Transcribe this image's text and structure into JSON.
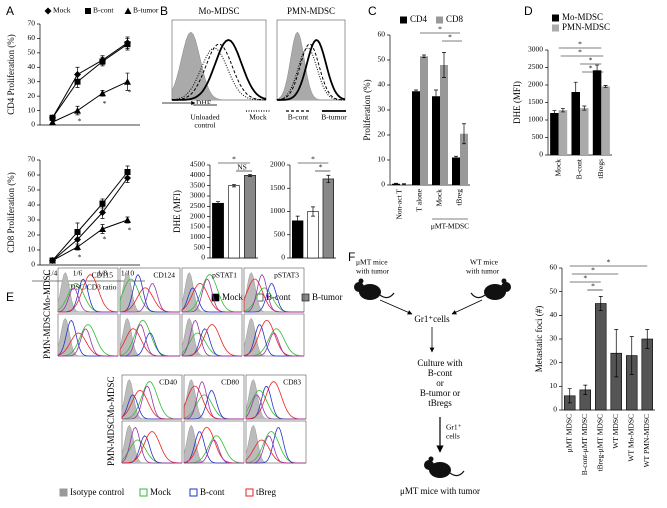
{
  "chart_data": [
    {
      "type": "line",
      "y_label": "CD4 Proliferation (%)",
      "categories": [
        null,
        null,
        null,
        null
      ],
      "ylim": [
        0,
        70
      ],
      "yticks": [
        0,
        10,
        20,
        30,
        40,
        50,
        60,
        70
      ],
      "series": [
        {
          "name": "Mock",
          "color": "#000000",
          "marker": "diamond",
          "values": [
            5,
            35,
            45,
            57
          ],
          "errors": [
            1,
            5,
            3,
            4
          ]
        },
        {
          "name": "B-cont",
          "color": "#000000",
          "marker": "square",
          "values": [
            5,
            30,
            44,
            56
          ],
          "errors": [
            1,
            4,
            3,
            4
          ]
        },
        {
          "name": "B-tumor",
          "color": "#000000",
          "marker": "triangle",
          "values": [
            2,
            10,
            22,
            30
          ],
          "errors": [
            1,
            3,
            2,
            6
          ],
          "sig_labels": [
            null,
            "*",
            "*",
            "*"
          ]
        }
      ]
    },
    {
      "type": "line",
      "y_label": "CD8 Proliferation (%)",
      "x_label": "MDSC/CD3 ratio",
      "categories": [
        "1/4",
        "1/6",
        "1/8",
        "1/10"
      ],
      "ylim": [
        0,
        70
      ],
      "yticks": [
        0,
        10,
        20,
        30,
        40,
        50,
        60,
        70
      ],
      "series": [
        {
          "color": "#000000",
          "marker": "diamond",
          "values": [
            3,
            17,
            35,
            58
          ],
          "errors": [
            1,
            5,
            4,
            3
          ]
        },
        {
          "color": "#000000",
          "marker": "square",
          "values": [
            3,
            22,
            41,
            62
          ],
          "errors": [
            1,
            6,
            3,
            4
          ]
        },
        {
          "color": "#000000",
          "marker": "triangle",
          "values": [
            3,
            12,
            24,
            30
          ],
          "errors": [
            1,
            2,
            3,
            2
          ],
          "sig_labels": [
            null,
            "*",
            "*",
            "*"
          ]
        }
      ]
    },
    {
      "type": "bar",
      "y_label": "DHE (MFI)",
      "categories": [
        null,
        null,
        null
      ],
      "values": [
        2650,
        3500,
        4000
      ],
      "errors": [
        80,
        60,
        50
      ],
      "colors": [
        "#000000",
        "#ffffff",
        "#888888"
      ],
      "ylim": [
        0,
        4500
      ],
      "yticks": [
        0,
        500,
        1000,
        1500,
        2000,
        2500,
        3000,
        3500,
        4000,
        4500
      ],
      "annotations": [
        "*",
        "NS"
      ]
    },
    {
      "type": "bar",
      "categories": [
        null,
        null,
        null
      ],
      "values": [
        800,
        1000,
        1700
      ],
      "errors": [
        100,
        100,
        80
      ],
      "colors": [
        "#000000",
        "#ffffff",
        "#888888"
      ],
      "ylim": [
        0,
        2000
      ],
      "yticks": [
        0,
        500,
        1000,
        1500,
        2000
      ],
      "annotations": [
        "*",
        "*"
      ]
    },
    {
      "type": "bar",
      "y_label": "Proliferation (%)",
      "categories": [
        "Non-act T",
        "T alone",
        "Mock",
        "tBreg"
      ],
      "group_label": "μMT-MDSC",
      "ylim": [
        0,
        60
      ],
      "yticks": [
        0,
        10,
        20,
        30,
        40,
        50,
        60
      ],
      "series": [
        {
          "name": "CD4",
          "color": "#000000",
          "values": [
            0.5,
            37.5,
            35.5,
            11
          ],
          "errors": [
            0.2,
            0.5,
            2.5,
            0.5
          ]
        },
        {
          "name": "CD8",
          "color": "#999999",
          "values": [
            0.3,
            51.5,
            48,
            20.5
          ],
          "errors": [
            0.2,
            0.5,
            5,
            4
          ]
        }
      ],
      "annotations": [
        "*",
        "*"
      ]
    },
    {
      "type": "bar",
      "y_label": "DHE (MFI)",
      "categories": [
        "Mock",
        "B-cont",
        "tBregs"
      ],
      "ylim": [
        0,
        3000
      ],
      "yticks": [
        0,
        500,
        1000,
        1500,
        2000,
        2500,
        3000
      ],
      "series": [
        {
          "name": "Mo-MDSC",
          "color": "#000000",
          "values": [
            1200,
            1800,
            2420
          ],
          "errors": [
            70,
            280,
            150
          ]
        },
        {
          "name": "PMN-MDSC",
          "color": "#aaaaaa",
          "values": [
            1280,
            1340,
            1960
          ],
          "errors": [
            50,
            60,
            30
          ]
        }
      ],
      "annotations": [
        "*",
        "*",
        "*",
        "*"
      ]
    },
    {
      "type": "bar",
      "y_label": "Metastatic foci (#)",
      "categories": [
        "μMT MDSC",
        "B-cont-μMT MDSC",
        "tBreg-μMT MDSC",
        "WT MDSC",
        "WT Mo-MDSC",
        "WT PMN-MDSC"
      ],
      "values": [
        6,
        8.5,
        45,
        24,
        23,
        30
      ],
      "errors": [
        3,
        2,
        3,
        10,
        8,
        4
      ],
      "colors": [
        "#555555",
        "#555555",
        "#555555",
        "#555555",
        "#555555",
        "#555555"
      ],
      "ylim": [
        0,
        60
      ],
      "yticks": [
        0,
        10,
        20,
        30,
        40,
        50,
        60
      ],
      "annotations": [
        "*",
        "*",
        "*",
        "*"
      ]
    }
  ],
  "panels": {
    "letters": [
      "A",
      "B",
      "C",
      "D",
      "E",
      "F"
    ],
    "B": {
      "hist_titles": [
        "Mo-MDSC",
        "PMN-MDSC"
      ],
      "axis": "DHE",
      "unloaded_control": [
        "Unloaded",
        "control"
      ],
      "mock": "Mock",
      "b_cont": "B-cont",
      "b_tumor": "B-tumor",
      "bar_legend": [
        {
          "name": "Mock",
          "color": "#000000"
        },
        {
          "name": "B-cont",
          "color": "#ffffff"
        },
        {
          "name": "B-tumor",
          "color": "#888888"
        }
      ]
    },
    "E": {
      "markers_top": [
        "CD115",
        "CD124",
        "pSTAT1",
        "pSTAT3"
      ],
      "markers_bottom": [
        "CD40",
        "CD80",
        "CD83"
      ],
      "rows": [
        "Mo-MDSC",
        "PMN-MDSC"
      ],
      "legend": [
        {
          "name": "Isotype control",
          "color": "#999999"
        },
        {
          "name": "Mock",
          "color": "#33bb33"
        },
        {
          "name": "B-cont",
          "color": "#2233cc"
        },
        {
          "name": "tBreg",
          "color": "#ee2222"
        }
      ]
    },
    "F": {
      "source_1": [
        "μMT mice",
        "with tumor"
      ],
      "source_2": [
        "WT mice",
        "with tumor"
      ],
      "cells": "Gr1⁺cells",
      "culture": [
        "Culture with",
        "B-cont",
        "or",
        "B-tumor or",
        "tBregs"
      ],
      "cells_2": [
        "Gr1⁺",
        "cells"
      ],
      "recipient": "μMT mice with tumor"
    }
  }
}
